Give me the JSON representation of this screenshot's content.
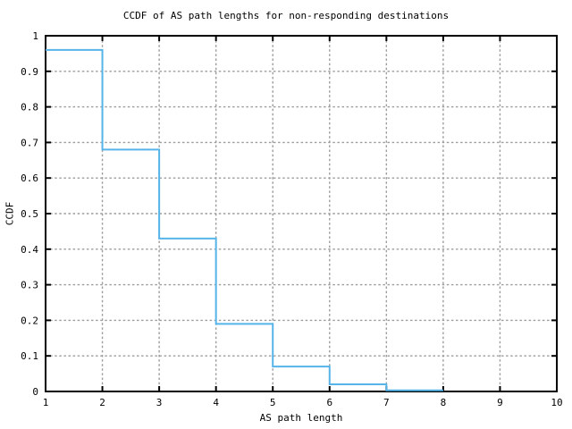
{
  "chart_data": {
    "type": "line",
    "subtype": "step-function",
    "title": "CCDF of AS path lengths for non-responding destinations",
    "xlabel": "AS path length",
    "ylabel": "CCDF",
    "xlim": [
      1,
      10
    ],
    "ylim": [
      0,
      1
    ],
    "x_ticks": [
      1,
      2,
      3,
      4,
      5,
      6,
      7,
      8,
      9,
      10
    ],
    "x_tick_labels": [
      "1",
      "2",
      "3",
      "4",
      "5",
      "6",
      "7",
      "8",
      "9",
      "10"
    ],
    "y_ticks": [
      0,
      0.1,
      0.2,
      0.3,
      0.4,
      0.5,
      0.6,
      0.7,
      0.8,
      0.9,
      1
    ],
    "y_tick_labels": [
      "0",
      "0.1",
      "0.2",
      "0.3",
      "0.4",
      "0.5",
      "0.6",
      "0.7",
      "0.8",
      "0.9",
      "1"
    ],
    "grid": true,
    "legend": "none",
    "colors": {
      "line": "#56B4E9",
      "grid": "#9C9C9C",
      "axis": "#000000",
      "background": "#FFFFFF"
    },
    "series": [
      {
        "name": "CCDF",
        "step_x": [
          1,
          2,
          3,
          4,
          5,
          6,
          7,
          8
        ],
        "step_y": [
          0.96,
          0.68,
          0.43,
          0.19,
          0.07,
          0.02,
          0.003
        ]
      }
    ]
  }
}
